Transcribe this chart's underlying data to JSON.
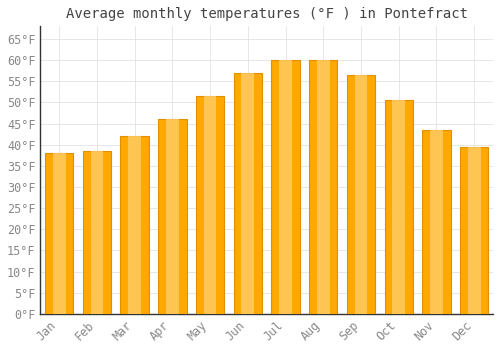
{
  "title": "Average monthly temperatures (°F ) in Pontefract",
  "months": [
    "Jan",
    "Feb",
    "Mar",
    "Apr",
    "May",
    "Jun",
    "Jul",
    "Aug",
    "Sep",
    "Oct",
    "Nov",
    "Dec"
  ],
  "values": [
    38,
    38.5,
    42,
    46,
    51.5,
    57,
    60,
    60,
    56.5,
    50.5,
    43.5,
    39.5
  ],
  "bar_color_main": "#FFA800",
  "bar_color_light": "#FFD070",
  "bar_color_edge": "#E09000",
  "background_color": "#FFFFFF",
  "grid_color": "#DDDDDD",
  "spine_color": "#333333",
  "text_color": "#888888",
  "title_color": "#444444",
  "ylim": [
    0,
    68
  ],
  "yticks": [
    0,
    5,
    10,
    15,
    20,
    25,
    30,
    35,
    40,
    45,
    50,
    55,
    60,
    65
  ],
  "title_fontsize": 10,
  "tick_fontsize": 8.5,
  "font_family": "monospace",
  "bar_width": 0.75
}
